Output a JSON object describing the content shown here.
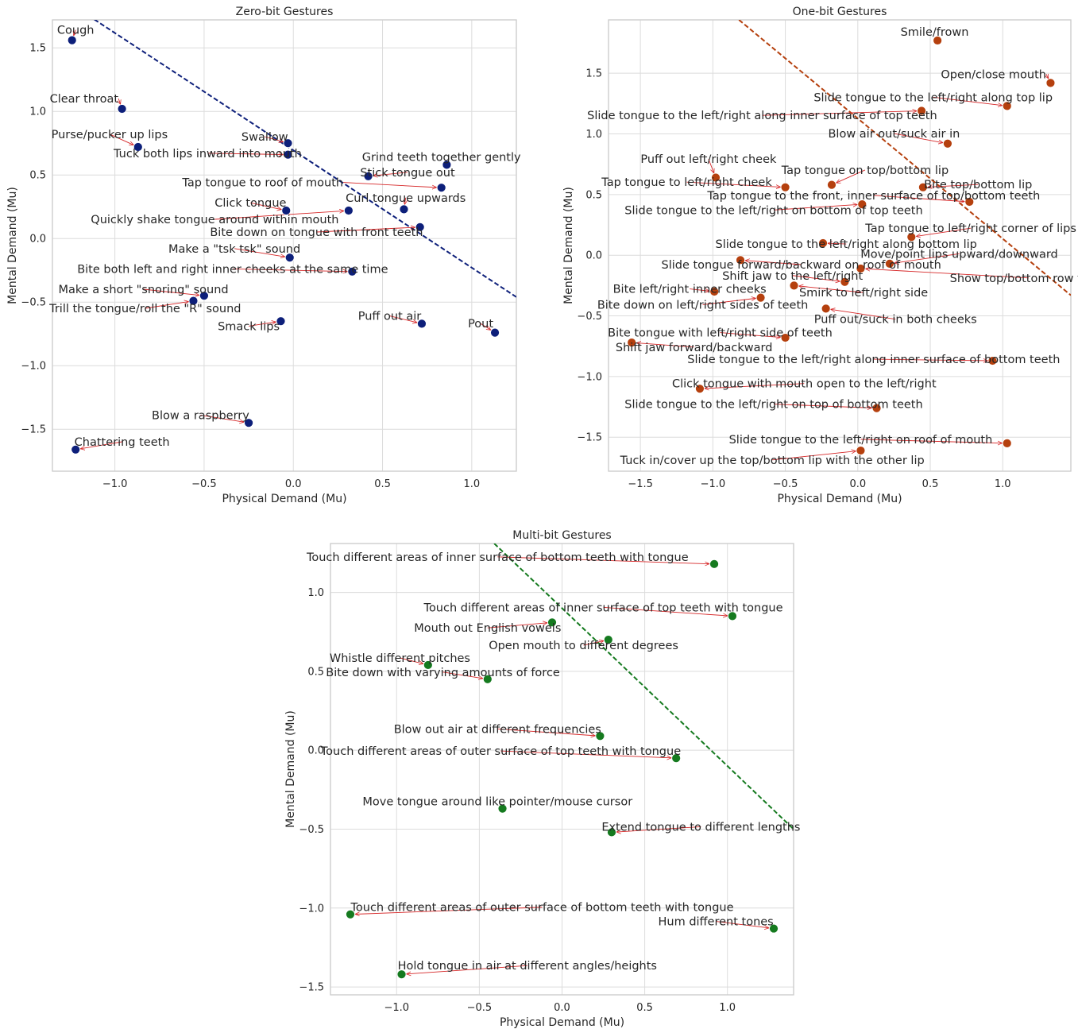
{
  "chart_data": [
    {
      "type": "scatter",
      "title": "Zero-bit Gestures",
      "xlabel": "Physical Demand (Mu)",
      "ylabel": "Mental Demand (Mu)",
      "xlim": [
        -1.35,
        1.25
      ],
      "ylim": [
        -1.83,
        1.72
      ],
      "xticks": [
        -1.0,
        -0.5,
        0.0,
        0.5,
        1.0
      ],
      "xtick_labels": [
        "−1.0",
        "−0.5",
        "0.0",
        "0.5",
        "1.0"
      ],
      "yticks": [
        -1.5,
        -1.0,
        -0.5,
        0.0,
        0.5,
        1.0,
        1.5
      ],
      "ytick_labels": [
        "−1.5",
        "−1.0",
        "−0.5",
        "0.0",
        "0.5",
        "1.0",
        "1.5"
      ],
      "color": "#0d1f7a",
      "grid": true,
      "trend_line": {
        "x1": -1.35,
        "y1": 1.94,
        "x2": 1.25,
        "y2": -0.46,
        "color": "#0d1f7a"
      },
      "points": [
        {
          "label": "Cough",
          "x": -1.24,
          "y": 1.56,
          "tx": -1.22,
          "ty": 1.61,
          "anchor": "middle"
        },
        {
          "label": "Clear throat",
          "x": -0.96,
          "y": 1.02,
          "tx": -0.98,
          "ty": 1.07,
          "anchor": "end"
        },
        {
          "label": "Purse/pucker up lips",
          "x": -0.87,
          "y": 0.72,
          "tx": -1.03,
          "ty": 0.79,
          "anchor": "middle"
        },
        {
          "label": "Tuck both lips inward into mouth",
          "x": -0.03,
          "y": 0.66,
          "tx": -0.48,
          "ty": 0.64,
          "anchor": "middle"
        },
        {
          "label": "Swallow",
          "x": -0.03,
          "y": 0.75,
          "tx": -0.16,
          "ty": 0.77,
          "anchor": "middle"
        },
        {
          "label": "Grind teeth together gently",
          "x": 0.86,
          "y": 0.58,
          "tx": 0.83,
          "ty": 0.61,
          "anchor": "middle"
        },
        {
          "label": "Stick tongue out",
          "x": 0.42,
          "y": 0.49,
          "tx": 0.64,
          "ty": 0.49,
          "anchor": "middle"
        },
        {
          "label": "Tap tongue to roof of mouth",
          "x": 0.83,
          "y": 0.4,
          "tx": 0.28,
          "ty": 0.41,
          "anchor": "end"
        },
        {
          "label": "Click tongue",
          "x": -0.04,
          "y": 0.22,
          "tx": -0.24,
          "ty": 0.25,
          "anchor": "middle"
        },
        {
          "label": "Curl tongue upwards",
          "x": 0.62,
          "y": 0.23,
          "tx": 0.63,
          "ty": 0.29,
          "anchor": "middle"
        },
        {
          "label": "Quickly shake tongue around within mouth",
          "x": 0.31,
          "y": 0.22,
          "tx": -0.44,
          "ty": 0.12,
          "anchor": "middle"
        },
        {
          "label": "Bite down on tongue with front teeth",
          "x": 0.71,
          "y": 0.09,
          "tx": 0.13,
          "ty": 0.02,
          "anchor": "middle"
        },
        {
          "label": "Make a \"tsk tsk\" sound",
          "x": -0.02,
          "y": -0.15,
          "tx": -0.33,
          "ty": -0.11,
          "anchor": "middle"
        },
        {
          "label": "Bite both left and right inner cheeks at the same time",
          "x": 0.33,
          "y": -0.26,
          "tx": -0.34,
          "ty": -0.27,
          "anchor": "middle"
        },
        {
          "label": "Make a short \"snoring\" sound",
          "x": -0.5,
          "y": -0.45,
          "tx": -0.84,
          "ty": -0.43,
          "anchor": "middle"
        },
        {
          "label": "Trill the tongue/roll the \"R\" sound",
          "x": -0.56,
          "y": -0.49,
          "tx": -0.83,
          "ty": -0.58,
          "anchor": "middle"
        },
        {
          "label": "Smack lips",
          "x": -0.07,
          "y": -0.65,
          "tx": -0.25,
          "ty": -0.72,
          "anchor": "middle"
        },
        {
          "label": "Puff out air",
          "x": 0.72,
          "y": -0.67,
          "tx": 0.54,
          "ty": -0.64,
          "anchor": "middle"
        },
        {
          "label": "Pout",
          "x": 1.13,
          "y": -0.74,
          "tx": 1.05,
          "ty": -0.7,
          "anchor": "middle"
        },
        {
          "label": "Blow a raspberry",
          "x": -0.25,
          "y": -1.45,
          "tx": -0.52,
          "ty": -1.42,
          "anchor": "middle"
        },
        {
          "label": "Chattering teeth",
          "x": -1.22,
          "y": -1.66,
          "tx": -0.96,
          "ty": -1.63,
          "anchor": "middle"
        }
      ]
    },
    {
      "type": "scatter",
      "title": "One-bit Gestures",
      "xlabel": "Physical Demand (Mu)",
      "ylabel": "Mental Demand (Mu)",
      "xlim": [
        -1.72,
        1.47
      ],
      "ylim": [
        -1.78,
        1.94
      ],
      "xticks": [
        -1.5,
        -1.0,
        -0.5,
        0.0,
        0.5,
        1.0
      ],
      "xtick_labels": [
        "−1.5",
        "−1.0",
        "−0.5",
        "0.0",
        "0.5",
        "1.0"
      ],
      "yticks": [
        -1.5,
        -1.0,
        -0.5,
        0.0,
        0.5,
        1.0,
        1.5
      ],
      "ytick_labels": [
        "−1.5",
        "−1.0",
        "−0.5",
        "0.0",
        "0.5",
        "1.0",
        "1.5"
      ],
      "color": "#b5400e",
      "grid": true,
      "trend_line": {
        "x1": -0.82,
        "y1": 1.94,
        "x2": 1.47,
        "y2": -0.33,
        "color": "#b5400e"
      },
      "points": [
        {
          "label": "Smile/frown",
          "x": 0.55,
          "y": 1.77,
          "tx": 0.53,
          "ty": 1.81,
          "anchor": "middle"
        },
        {
          "label": "Open/close mouth",
          "x": 1.33,
          "y": 1.42,
          "tx": 1.3,
          "ty": 1.46,
          "anchor": "end"
        },
        {
          "label": "Slide tongue to the left/right along top lip",
          "x": 1.03,
          "y": 1.23,
          "tx": 0.52,
          "ty": 1.27,
          "anchor": "middle"
        },
        {
          "label": "Slide tongue to the left/right along inner surface of top teeth",
          "x": 0.44,
          "y": 1.19,
          "tx": -0.66,
          "ty": 1.12,
          "anchor": "middle"
        },
        {
          "label": "Blow air out/suck air in",
          "x": 0.62,
          "y": 0.92,
          "tx": 0.25,
          "ty": 0.97,
          "anchor": "middle"
        },
        {
          "label": "Puff out left/right cheek",
          "x": -0.98,
          "y": 0.64,
          "tx": -1.03,
          "ty": 0.76,
          "anchor": "middle"
        },
        {
          "label": "Tap tongue on top/bottom lip",
          "x": -0.18,
          "y": 0.58,
          "tx": 0.05,
          "ty": 0.67,
          "anchor": "middle"
        },
        {
          "label": "Tap tongue to left/right cheek",
          "x": -0.5,
          "y": 0.56,
          "tx": -1.18,
          "ty": 0.57,
          "anchor": "middle"
        },
        {
          "label": "Bite top/bottom lip",
          "x": 0.45,
          "y": 0.56,
          "tx": 0.83,
          "ty": 0.55,
          "anchor": "middle"
        },
        {
          "label": "Tap tongue to the front, inner surface of top/bottom teeth",
          "x": 0.77,
          "y": 0.44,
          "tx": 0.11,
          "ty": 0.46,
          "anchor": "middle"
        },
        {
          "label": "Slide tongue to the left/right on bottom of top teeth",
          "x": 0.03,
          "y": 0.42,
          "tx": -0.58,
          "ty": 0.34,
          "anchor": "middle"
        },
        {
          "label": "Tap tongue to left/right corner of lips",
          "x": 0.37,
          "y": 0.15,
          "tx": 0.78,
          "ty": 0.19,
          "anchor": "middle"
        },
        {
          "label": "Slide tongue to the left/right along bottom lip",
          "x": -0.24,
          "y": 0.1,
          "tx": -0.08,
          "ty": 0.06,
          "anchor": "middle"
        },
        {
          "label": "Move/point lips upward/downward",
          "x": 0.22,
          "y": -0.07,
          "tx": 0.7,
          "ty": -0.02,
          "anchor": "middle"
        },
        {
          "label": "Slide tongue forward/backward on roof of mouth",
          "x": -0.81,
          "y": -0.04,
          "tx": -0.39,
          "ty": -0.11,
          "anchor": "middle"
        },
        {
          "label": "Show top/bottom row teeth",
          "x": 0.02,
          "y": -0.11,
          "tx": 1.18,
          "ty": -0.22,
          "anchor": "middle"
        },
        {
          "label": "Shift jaw to the left/right",
          "x": -0.09,
          "y": -0.22,
          "tx": -0.45,
          "ty": -0.2,
          "anchor": "middle"
        },
        {
          "label": "Bite left/right inner cheeks",
          "x": -0.99,
          "y": -0.3,
          "tx": -1.16,
          "ty": -0.31,
          "anchor": "middle"
        },
        {
          "label": "Smirk to left/right side",
          "x": -0.44,
          "y": -0.25,
          "tx": 0.04,
          "ty": -0.34,
          "anchor": "middle"
        },
        {
          "label": "Bite down on left/right sides of teeth",
          "x": -0.67,
          "y": -0.35,
          "tx": -1.07,
          "ty": -0.44,
          "anchor": "middle"
        },
        {
          "label": "Puff out/suck in both cheeks",
          "x": -0.22,
          "y": -0.44,
          "tx": 0.26,
          "ty": -0.56,
          "anchor": "middle"
        },
        {
          "label": "Bite tongue with left/right side of teeth",
          "x": -0.5,
          "y": -0.68,
          "tx": -0.95,
          "ty": -0.67,
          "anchor": "middle"
        },
        {
          "label": "Shift jaw forward/backward",
          "x": -1.56,
          "y": -0.72,
          "tx": -1.13,
          "ty": -0.79,
          "anchor": "middle"
        },
        {
          "label": "Slide tongue to the left/right along inner surface of bottom teeth",
          "x": 0.93,
          "y": -0.87,
          "tx": 0.11,
          "ty": -0.89,
          "anchor": "middle"
        },
        {
          "label": "Click tongue with mouth open to the left/right",
          "x": -1.09,
          "y": -1.1,
          "tx": -0.37,
          "ty": -1.09,
          "anchor": "middle"
        },
        {
          "label": "Slide tongue to the left/right on top of bottom teeth",
          "x": 0.13,
          "y": -1.26,
          "tx": -0.58,
          "ty": -1.26,
          "anchor": "middle"
        },
        {
          "label": "Slide tongue to the left/right on roof of mouth",
          "x": 1.03,
          "y": -1.55,
          "tx": 0.02,
          "ty": -1.55,
          "anchor": "middle"
        },
        {
          "label": "Tuck in/cover up the top/bottom lip with the other lip",
          "x": 0.02,
          "y": -1.61,
          "tx": -0.59,
          "ty": -1.72,
          "anchor": "middle"
        }
      ]
    },
    {
      "type": "scatter",
      "title": "Multi-bit Gestures",
      "xlabel": "Physical Demand (Mu)",
      "ylabel": "Mental Demand (Mu)",
      "xlim": [
        -1.4,
        1.4
      ],
      "ylim": [
        -1.55,
        1.31
      ],
      "xticks": [
        -1.0,
        -0.5,
        0.0,
        0.5,
        1.0
      ],
      "xtick_labels": [
        "−1.0",
        "−0.5",
        "0.0",
        "0.5",
        "1.0"
      ],
      "yticks": [
        -1.5,
        -1.0,
        -0.5,
        0.0,
        0.5,
        1.0
      ],
      "ytick_labels": [
        "−1.5",
        "−1.0",
        "−0.5",
        "0.0",
        "0.5",
        "1.0"
      ],
      "color": "#157a1f",
      "grid": true,
      "trend_line": {
        "x1": -0.41,
        "y1": 1.31,
        "x2": 1.4,
        "y2": -0.5,
        "color": "#157a1f"
      },
      "points": [
        {
          "label": "Touch different areas of inner surface of bottom teeth with tongue",
          "x": 0.92,
          "y": 1.18,
          "tx": -0.39,
          "ty": 1.2,
          "anchor": "middle"
        },
        {
          "label": "Touch different areas of inner surface of top teeth with tongue",
          "x": 1.03,
          "y": 0.85,
          "tx": 0.25,
          "ty": 0.88,
          "anchor": "middle"
        },
        {
          "label": "Mouth out English vowels",
          "x": -0.06,
          "y": 0.81,
          "tx": -0.45,
          "ty": 0.75,
          "anchor": "middle"
        },
        {
          "label": "Open mouth to different degrees",
          "x": 0.28,
          "y": 0.7,
          "tx": 0.13,
          "ty": 0.64,
          "anchor": "middle"
        },
        {
          "label": "Whistle different pitches",
          "x": -0.81,
          "y": 0.54,
          "tx": -0.98,
          "ty": 0.56,
          "anchor": "middle"
        },
        {
          "label": "Bite down with varying amounts of force",
          "x": -0.45,
          "y": 0.45,
          "tx": -0.72,
          "ty": 0.47,
          "anchor": "middle"
        },
        {
          "label": "Blow out air at different frequencies",
          "x": 0.23,
          "y": 0.09,
          "tx": -0.39,
          "ty": 0.11,
          "anchor": "middle"
        },
        {
          "label": "Touch different areas of outer surface of top teeth with tongue",
          "x": 0.69,
          "y": -0.05,
          "tx": -0.37,
          "ty": -0.03,
          "anchor": "middle"
        },
        {
          "label": "Move tongue around like pointer/mouse cursor",
          "x": -0.36,
          "y": -0.37,
          "tx": -0.39,
          "ty": -0.35,
          "anchor": "middle"
        },
        {
          "label": "Extend tongue to different lengths",
          "x": 0.3,
          "y": -0.52,
          "tx": 0.84,
          "ty": -0.51,
          "anchor": "middle"
        },
        {
          "label": "Touch different areas of outer surface of bottom teeth with tongue",
          "x": -1.28,
          "y": -1.04,
          "tx": -0.12,
          "ty": -1.02,
          "anchor": "middle"
        },
        {
          "label": "Hum different tones",
          "x": 1.28,
          "y": -1.13,
          "tx": 0.93,
          "ty": -1.11,
          "anchor": "middle"
        },
        {
          "label": "Hold tongue in air at different angles/heights",
          "x": -0.97,
          "y": -1.42,
          "tx": -0.21,
          "ty": -1.39,
          "anchor": "middle"
        }
      ]
    }
  ]
}
